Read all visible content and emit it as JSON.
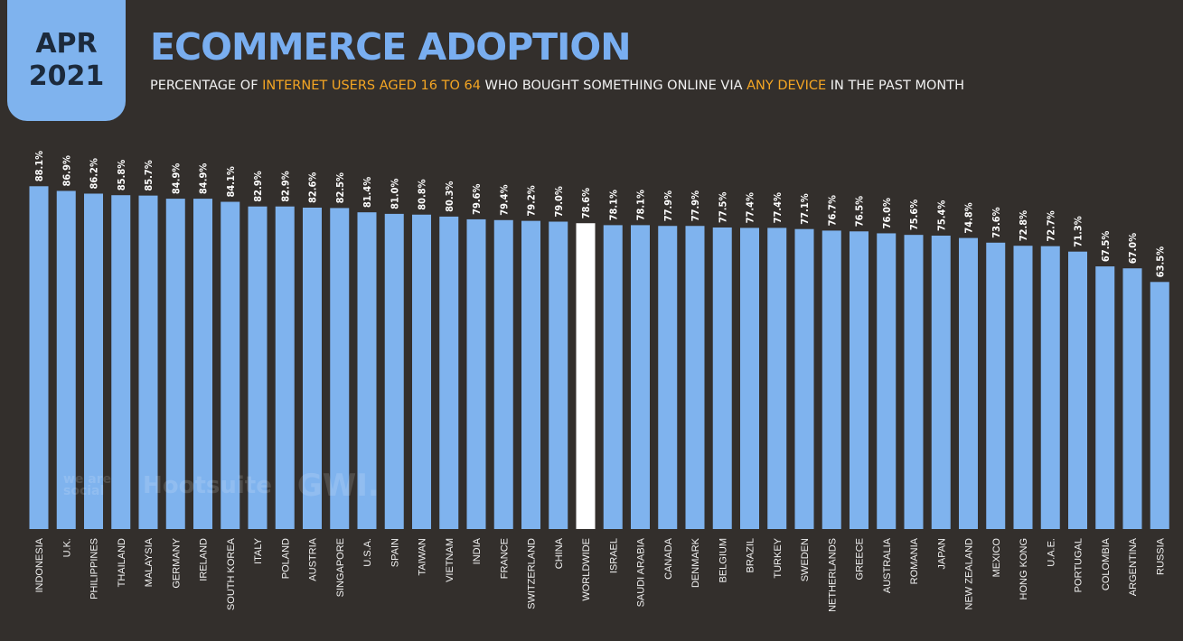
{
  "badge": {
    "month": "APR",
    "year": "2021"
  },
  "header": {
    "title": "ECOMMERCE ADOPTION",
    "subtitle_parts": [
      "PERCENTAGE OF ",
      "INTERNET USERS AGED 16 TO 64",
      " WHO BOUGHT SOMETHING ONLINE VIA ",
      "ANY DEVICE",
      " IN THE PAST MONTH"
    ]
  },
  "watermarks": {
    "social": "we are social",
    "hootsuite": "Hootsuite",
    "gwi": "GWI."
  },
  "colors": {
    "bar": "#7fb3ee",
    "highlight_bar": "#ffffff",
    "background": "#332f2c",
    "accent": "#f5a623"
  },
  "chart_data": {
    "type": "bar",
    "title": "ECOMMERCE ADOPTION",
    "highlight": "WORLDWIDE",
    "ylim": [
      0,
      100
    ],
    "grid": false,
    "categories": [
      "INDONESIA",
      "U.K.",
      "PHILIPPINES",
      "THAILAND",
      "MALAYSIA",
      "GERMANY",
      "IRELAND",
      "SOUTH KOREA",
      "ITALY",
      "POLAND",
      "AUSTRIA",
      "SINGAPORE",
      "U.S.A.",
      "SPAIN",
      "TAIWAN",
      "VIETNAM",
      "INDIA",
      "FRANCE",
      "SWITZERLAND",
      "CHINA",
      "WORLDWIDE",
      "ISRAEL",
      "SAUDI ARABIA",
      "CANADA",
      "DENMARK",
      "BELGIUM",
      "BRAZIL",
      "TURKEY",
      "SWEDEN",
      "NETHERLANDS",
      "GREECE",
      "AUSTRALIA",
      "ROMANIA",
      "JAPAN",
      "NEW ZEALAND",
      "MEXICO",
      "HONG KONG",
      "U.A.E.",
      "PORTUGAL",
      "COLOMBIA",
      "ARGENTINA",
      "RUSSIA"
    ],
    "values": [
      88.1,
      86.9,
      86.2,
      85.8,
      85.7,
      84.9,
      84.9,
      84.1,
      82.9,
      82.9,
      82.6,
      82.5,
      81.4,
      81.0,
      80.8,
      80.3,
      79.6,
      79.4,
      79.2,
      79.0,
      78.6,
      78.1,
      78.1,
      77.9,
      77.9,
      77.5,
      77.4,
      77.4,
      77.1,
      76.7,
      76.5,
      76.0,
      75.6,
      75.4,
      74.8,
      73.6,
      72.8,
      72.7,
      71.3,
      67.5,
      67.0,
      63.5
    ],
    "labels": [
      "88.1%",
      "86.9%",
      "86.2%",
      "85.8%",
      "85.7%",
      "84.9%",
      "84.9%",
      "84.1%",
      "82.9%",
      "82.9%",
      "82.6%",
      "82.5%",
      "81.4%",
      "81.0%",
      "80.8%",
      "80.3%",
      "79.6%",
      "79.4%",
      "79.2%",
      "79.0%",
      "78.6%",
      "78.1%",
      "78.1%",
      "77.9%",
      "77.9%",
      "77.5%",
      "77.4%",
      "77.4%",
      "77.1%",
      "76.7%",
      "76.5%",
      "76.0%",
      "75.6%",
      "75.4%",
      "74.8%",
      "73.6%",
      "72.8%",
      "72.7%",
      "71.3%",
      "67.5%",
      "67.0%",
      "63.5%"
    ]
  }
}
